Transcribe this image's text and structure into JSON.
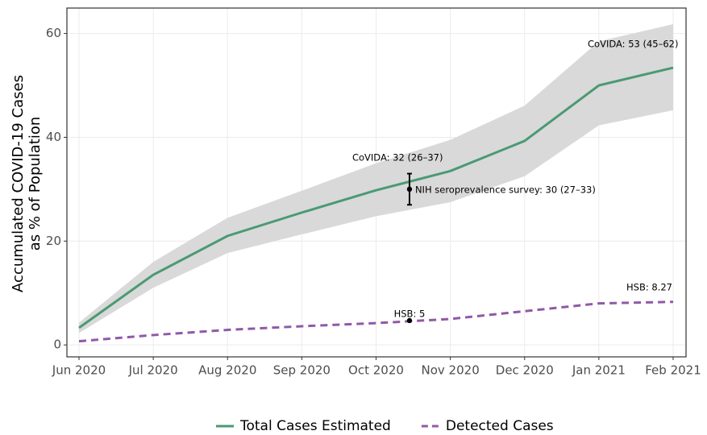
{
  "chart_data": {
    "type": "line",
    "ylabel": [
      "Accumulated COVID-19 Cases",
      "as % of Population"
    ],
    "categories": [
      "Jun 2020",
      "Jul 2020",
      "Aug 2020",
      "Sep 2020",
      "Oct 2020",
      "Nov 2020",
      "Dec 2020",
      "Jan 2021",
      "Feb 2021"
    ],
    "series": [
      {
        "name": "Total Cases Estimated",
        "color": "#4a9a73",
        "dash": false,
        "values": [
          3.3,
          13.5,
          21,
          25.5,
          29.8,
          33.5,
          39.3,
          50,
          53.4
        ],
        "lower": [
          2.3,
          11,
          17.7,
          21.3,
          24.8,
          27.5,
          32.5,
          42.3,
          45.2
        ],
        "upper": [
          4.3,
          16,
          24.5,
          29.7,
          35,
          39.5,
          46.1,
          58.5,
          61.8
        ],
        "band_color": "#d9d9d9"
      },
      {
        "name": "Detected Cases",
        "color": "#8f5aa6",
        "dash": true,
        "values": [
          0.7,
          1.9,
          2.9,
          3.6,
          4.2,
          5,
          6.5,
          8,
          8.3
        ]
      }
    ],
    "annotations": [
      {
        "label": "CoVIDA: 32 (26–37)"
      },
      {
        "label": "NIH seroprevalence survey: 30 (27–33)",
        "value": 30,
        "low": 27,
        "high": 33
      },
      {
        "label": "HSB: 5",
        "value": 5
      },
      {
        "label": "CoVIDA: 53 (45–62)"
      },
      {
        "label": "HSB:  8.27"
      }
    ],
    "ylim": [
      -2.3,
      64.9
    ],
    "yticks": [
      0,
      20,
      40,
      60
    ],
    "grid": true,
    "legend": "bottom"
  }
}
